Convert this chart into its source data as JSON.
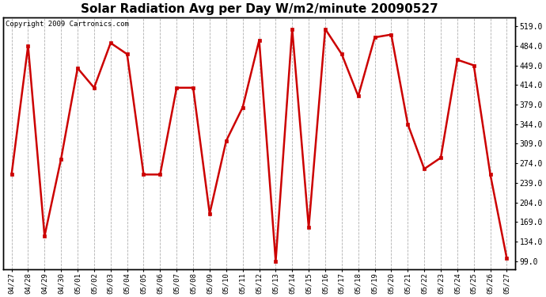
{
  "title": "Solar Radiation Avg per Day W/m2/minute 20090527",
  "copyright": "Copyright 2009 Cartronics.com",
  "labels": [
    "04/27",
    "04/28",
    "04/29",
    "04/30",
    "05/01",
    "05/02",
    "05/03",
    "05/04",
    "05/05",
    "05/06",
    "05/07",
    "05/08",
    "05/09",
    "05/10",
    "05/11",
    "05/12",
    "05/13",
    "05/14",
    "05/15",
    "05/16",
    "05/17",
    "05/18",
    "05/19",
    "05/20",
    "05/21",
    "05/22",
    "05/23",
    "05/24",
    "05/25",
    "05/26",
    "05/27"
  ],
  "values": [
    254,
    484,
    144,
    282,
    444,
    409,
    489,
    469,
    254,
    254,
    409,
    409,
    184,
    314,
    374,
    494,
    99,
    514,
    159,
    514,
    469,
    394,
    499,
    504,
    344,
    264,
    284,
    459,
    449,
    254,
    104
  ],
  "line_color": "#cc0000",
  "marker_color": "#cc0000",
  "bg_color": "#ffffff",
  "plot_bg_color": "#ffffff",
  "grid_color": "#b0b0b0",
  "yticks": [
    99.0,
    134.0,
    169.0,
    204.0,
    239.0,
    274.0,
    309.0,
    344.0,
    379.0,
    414.0,
    449.0,
    484.0,
    519.0
  ],
  "ylim": [
    85,
    535
  ],
  "title_fontsize": 11,
  "copyright_fontsize": 6.5,
  "tick_fontsize": 6.5,
  "ytick_fontsize": 7
}
